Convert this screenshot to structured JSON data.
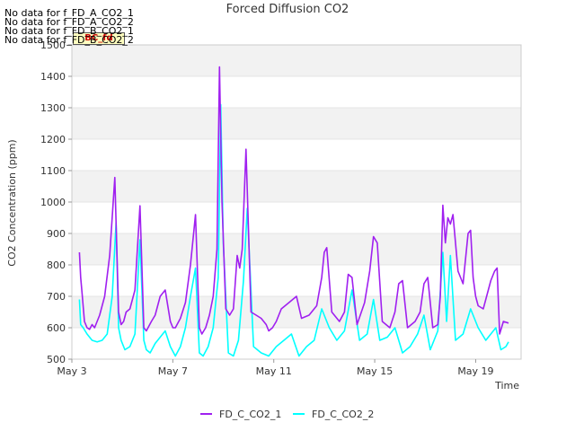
{
  "notices": [
    "No data for f_FD_A_CO2_1",
    "No data for f_FD_A_CO2_2",
    "No data for f_FD_B_CO2_1",
    "No data for f_FD_B_CO2_2"
  ],
  "badge": "BC_fd",
  "chart_data": {
    "type": "line",
    "title": "Forced Diffusion CO2",
    "xlabel": "Time",
    "ylabel": "CO2 Concentration (ppm)",
    "xlim": [
      3,
      20.8
    ],
    "ylim": [
      500,
      1500
    ],
    "x_ticks": [
      "May 3",
      "May 7",
      "May 11",
      "May 15",
      "May 19"
    ],
    "x_tick_values": [
      3,
      7,
      11,
      15,
      19
    ],
    "y_ticks": [
      500,
      600,
      700,
      800,
      900,
      1000,
      1100,
      1200,
      1300,
      1400,
      1500
    ],
    "grid": true,
    "legend_position": "bottom-center",
    "series": [
      {
        "name": "FD_C_CO2_1",
        "color": "#a020f0",
        "x": [
          3.3,
          3.35,
          3.4,
          3.5,
          3.6,
          3.7,
          3.8,
          3.9,
          4.1,
          4.3,
          4.5,
          4.7,
          4.85,
          4.95,
          5.05,
          5.15,
          5.3,
          5.5,
          5.7,
          5.85,
          5.95,
          6.05,
          6.15,
          6.3,
          6.5,
          6.7,
          6.9,
          7.0,
          7.1,
          7.3,
          7.5,
          7.7,
          7.9,
          8.05,
          8.15,
          8.3,
          8.45,
          8.6,
          8.75,
          8.85,
          8.95,
          9.1,
          9.25,
          9.4,
          9.55,
          9.65,
          9.75,
          9.9,
          10.1,
          10.3,
          10.5,
          10.7,
          10.8,
          10.95,
          11.1,
          11.3,
          11.6,
          11.9,
          12.1,
          12.4,
          12.7,
          12.9,
          13.0,
          13.1,
          13.3,
          13.6,
          13.8,
          13.95,
          14.1,
          14.3,
          14.6,
          14.8,
          14.95,
          15.1,
          15.3,
          15.6,
          15.8,
          15.95,
          16.1,
          16.3,
          16.6,
          16.8,
          16.95,
          17.1,
          17.3,
          17.5,
          17.6,
          17.7,
          17.8,
          17.9,
          18.0,
          18.1,
          18.3,
          18.5,
          18.6,
          18.7,
          18.8,
          18.9,
          19.0,
          19.1,
          19.3,
          19.6,
          19.75,
          19.85,
          19.95,
          20.1,
          20.3
        ],
        "values": [
          840,
          760,
          715,
          620,
          600,
          595,
          610,
          600,
          640,
          700,
          830,
          1078,
          650,
          610,
          620,
          650,
          660,
          720,
          988,
          600,
          590,
          605,
          620,
          640,
          700,
          720,
          620,
          600,
          600,
          630,
          680,
          800,
          960,
          600,
          580,
          600,
          640,
          700,
          850,
          1430,
          1000,
          660,
          640,
          660,
          830,
          790,
          850,
          1168,
          650,
          640,
          630,
          610,
          590,
          600,
          620,
          660,
          680,
          700,
          630,
          640,
          670,
          760,
          840,
          855,
          650,
          620,
          650,
          770,
          760,
          610,
          680,
          780,
          890,
          870,
          620,
          600,
          650,
          740,
          750,
          600,
          620,
          650,
          740,
          760,
          600,
          610,
          700,
          990,
          870,
          950,
          930,
          960,
          780,
          740,
          820,
          900,
          910,
          760,
          700,
          670,
          660,
          750,
          780,
          790,
          580,
          620,
          615
        ]
      },
      {
        "name": "FD_C_CO2_2",
        "color": "#00ffff",
        "x": [
          3.3,
          3.35,
          3.45,
          3.6,
          3.8,
          4.0,
          4.2,
          4.4,
          4.6,
          4.75,
          4.85,
          4.95,
          5.1,
          5.3,
          5.5,
          5.7,
          5.85,
          5.95,
          6.1,
          6.3,
          6.5,
          6.7,
          6.9,
          7.1,
          7.3,
          7.5,
          7.7,
          7.9,
          8.05,
          8.2,
          8.4,
          8.6,
          8.8,
          8.9,
          9.0,
          9.2,
          9.4,
          9.6,
          9.8,
          9.95,
          10.2,
          10.5,
          10.8,
          11.1,
          11.4,
          11.7,
          12.0,
          12.3,
          12.6,
          12.9,
          13.2,
          13.5,
          13.8,
          14.1,
          14.4,
          14.7,
          14.95,
          15.2,
          15.5,
          15.8,
          16.1,
          16.4,
          16.7,
          16.95,
          17.2,
          17.5,
          17.7,
          17.85,
          18.0,
          18.2,
          18.5,
          18.8,
          19.1,
          19.4,
          19.6,
          19.8,
          20.0,
          20.2,
          20.3
        ],
        "values": [
          690,
          610,
          600,
          580,
          560,
          555,
          560,
          580,
          700,
          935,
          600,
          560,
          530,
          540,
          580,
          880,
          560,
          530,
          520,
          550,
          570,
          590,
          540,
          510,
          540,
          600,
          700,
          790,
          520,
          510,
          540,
          600,
          760,
          1310,
          870,
          520,
          510,
          560,
          750,
          980,
          540,
          520,
          510,
          540,
          560,
          580,
          510,
          540,
          560,
          660,
          600,
          560,
          590,
          720,
          560,
          580,
          690,
          560,
          570,
          600,
          520,
          540,
          580,
          640,
          530,
          590,
          840,
          620,
          830,
          560,
          580,
          660,
          600,
          560,
          580,
          600,
          530,
          540,
          555
        ]
      }
    ]
  }
}
